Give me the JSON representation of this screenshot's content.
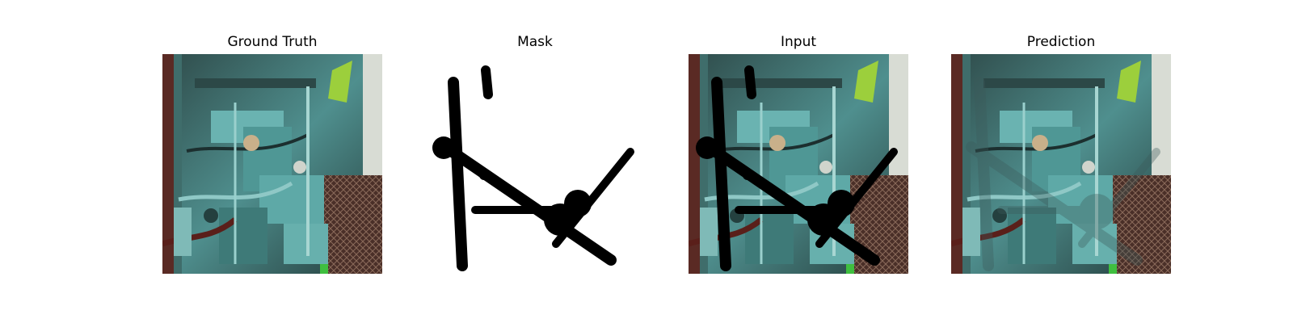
{
  "panels": [
    {
      "title": "Ground Truth"
    },
    {
      "title": "Mask"
    },
    {
      "title": "Input"
    },
    {
      "title": "Prediction"
    }
  ],
  "colors": {
    "machinery": "#5fa7a6",
    "machinery_dark": "#1f3535",
    "grate": "#6b4a3a",
    "mask_stroke": "#000000",
    "background": "#ffffff"
  }
}
